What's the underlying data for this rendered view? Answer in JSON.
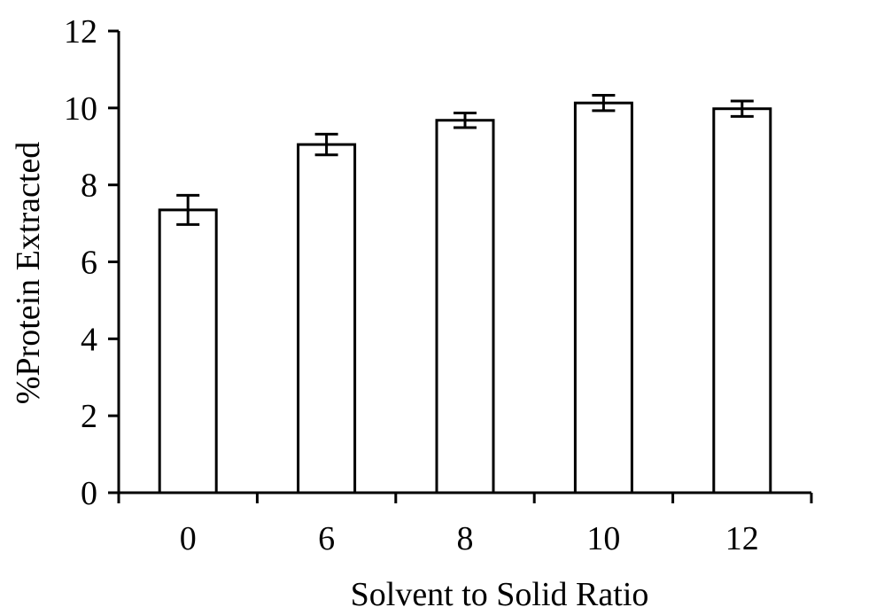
{
  "chart_data": {
    "type": "bar",
    "title": "",
    "xlabel": "Solvent to Solid Ratio",
    "ylabel": "%Protein Extracted",
    "categories": [
      "0",
      "6",
      "8",
      "10",
      "12"
    ],
    "values": [
      7.35,
      9.05,
      9.68,
      10.13,
      9.98
    ],
    "errors": [
      0.38,
      0.27,
      0.19,
      0.2,
      0.2
    ],
    "ylim": [
      0,
      12
    ],
    "yticks": [
      0,
      2,
      4,
      6,
      8,
      10,
      12
    ],
    "grid": false,
    "legend": "none",
    "bar_fill": "#ffffff",
    "bar_stroke": "#000000"
  }
}
